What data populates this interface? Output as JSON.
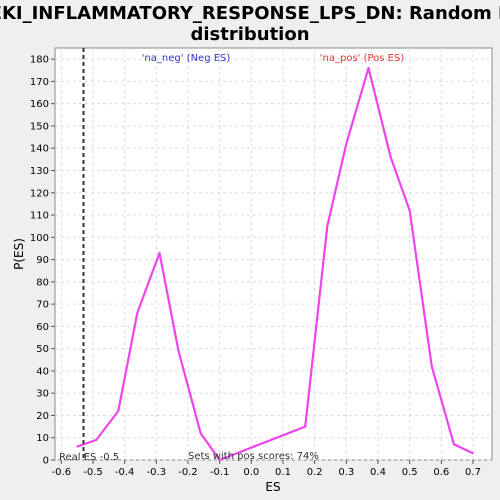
{
  "chart_data": {
    "type": "line",
    "title": "SEKI_INFLAMMATORY_RESPONSE_LPS_DN: Random ES distribution",
    "title_lines": [
      "SEKI_INFLAMMATORY_RESPONSE_LPS_DN: Random ES",
      "distribution"
    ],
    "xlabel": "ES",
    "ylabel": "P(ES)",
    "xlim": [
      -0.62,
      0.76
    ],
    "ylim": [
      0,
      185
    ],
    "x_ticks": [
      -0.6,
      -0.5,
      -0.4,
      -0.3,
      -0.2,
      -0.1,
      0.0,
      0.1,
      0.2,
      0.3,
      0.4,
      0.5,
      0.6,
      0.7
    ],
    "x_tick_labels": [
      "-0.6",
      "-0.5",
      "-0.4",
      "-0.3",
      "-0.2",
      "-0.1",
      "0.0",
      "0.1",
      "0.2",
      "0.3",
      "0.4",
      "0.5",
      "0.6",
      "0.7"
    ],
    "y_ticks": [
      0,
      10,
      20,
      30,
      40,
      50,
      60,
      70,
      80,
      90,
      100,
      110,
      120,
      130,
      140,
      150,
      160,
      170,
      180
    ],
    "y_tick_labels": [
      "0",
      "10",
      "20",
      "30",
      "40",
      "50",
      "60",
      "70",
      "80",
      "90",
      "100",
      "110",
      "120",
      "130",
      "140",
      "150",
      "160",
      "170",
      "180"
    ],
    "grid": true,
    "series": [
      {
        "color": "#ee44ee",
        "x": [
          -0.55,
          -0.49,
          -0.42,
          -0.36,
          -0.29,
          -0.23,
          -0.16,
          -0.1,
          0.17,
          0.24,
          0.3,
          0.37,
          0.44,
          0.5,
          0.57,
          0.64,
          0.7
        ],
        "y": [
          6,
          9,
          22,
          66,
          93,
          49,
          12,
          0,
          15,
          105,
          142,
          176,
          136,
          112,
          42,
          7,
          3
        ]
      }
    ],
    "real_es": {
      "value": -0.53,
      "label": "Real ES -0.5",
      "color": "#333333"
    },
    "annotations": {
      "neg": {
        "text": "'na_neg' (Neg ES)",
        "color": "#3333cc"
      },
      "pos": {
        "text": "'na_pos' (Pos ES)",
        "color": "#ee3333"
      },
      "sets": {
        "text": "Sets with pos scores: 74%",
        "color": "#333333"
      }
    }
  }
}
